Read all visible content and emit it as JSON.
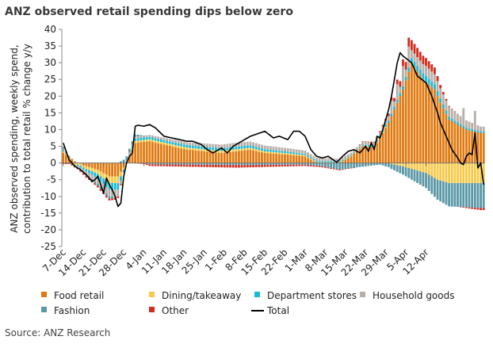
{
  "chart_data": {
    "type": "bar",
    "stacked": true,
    "title": "ANZ observed retail spending dips below zero",
    "ylabel": "ANZ observed spending, weekly spend, contribution to total retail % change y/y",
    "ylabel_lines": [
      "ANZ observed spending, weekly spend,",
      "contribution to total retail % change y/y"
    ],
    "ylim": [
      -25,
      40
    ],
    "yticks": [
      40,
      35,
      30,
      25,
      20,
      15,
      10,
      5,
      0,
      -5,
      -10,
      -15,
      -20,
      -25
    ],
    "source": "Source: ANZ Research",
    "xticks": [
      "7-Dec",
      "14-Dec",
      "21-Dec",
      "28-Dec",
      "4-Jan",
      "11-Jan",
      "18-Jan",
      "25-Jan",
      "1-Feb",
      "8-Feb",
      "15-Feb",
      "22-Feb",
      "1-Mar",
      "8-Mar",
      "15-Mar",
      "22-Mar",
      "29-Mar",
      "5-Apr",
      "12-Apr"
    ],
    "colors": {
      "food": "#E07A10",
      "dining": "#F7C948",
      "dept": "#1AB9D6",
      "household": "#B8AFA8",
      "fashion": "#5B98A6",
      "other": "#D22B1E",
      "total": "#000000"
    },
    "legend": [
      {
        "key": "food",
        "label": "Food retail",
        "kind": "bar"
      },
      {
        "key": "dining",
        "label": "Dining/takeaway",
        "kind": "bar"
      },
      {
        "key": "dept",
        "label": "Department stores",
        "kind": "bar"
      },
      {
        "key": "household",
        "label": "Household goods",
        "kind": "bar"
      },
      {
        "key": "fashion",
        "label": "Fashion",
        "kind": "bar"
      },
      {
        "key": "other",
        "label": "Other",
        "kind": "bar"
      },
      {
        "key": "total",
        "label": "Total",
        "kind": "line"
      }
    ],
    "knots": {
      "food": [
        [
          0,
          3
        ],
        [
          4,
          0.5
        ],
        [
          8,
          -1
        ],
        [
          12,
          -2
        ],
        [
          16,
          -4
        ],
        [
          19,
          -4
        ],
        [
          22,
          0
        ],
        [
          25,
          6
        ],
        [
          30,
          6.5
        ],
        [
          35,
          5.5
        ],
        [
          43,
          4
        ],
        [
          55,
          3
        ],
        [
          60,
          3.5
        ],
        [
          65,
          4
        ],
        [
          70,
          3
        ],
        [
          78,
          2.5
        ],
        [
          84,
          2
        ],
        [
          88,
          0
        ],
        [
          96,
          0
        ],
        [
          100,
          2
        ],
        [
          104,
          5
        ],
        [
          108,
          4.5
        ],
        [
          113,
          12
        ],
        [
          118,
          22
        ],
        [
          121,
          30
        ],
        [
          125,
          25
        ],
        [
          129,
          22
        ],
        [
          131,
          18
        ],
        [
          134,
          13
        ],
        [
          138,
          11
        ],
        [
          140,
          10
        ],
        [
          145,
          9
        ]
      ],
      "dining": [
        [
          0,
          0.5
        ],
        [
          4,
          -0.5
        ],
        [
          10,
          -1
        ],
        [
          16,
          -2
        ],
        [
          19,
          -2
        ],
        [
          22,
          0
        ],
        [
          25,
          0.6
        ],
        [
          60,
          0.6
        ],
        [
          84,
          0.3
        ],
        [
          100,
          0.1
        ],
        [
          112,
          0.3
        ],
        [
          114,
          -0.3
        ],
        [
          118,
          -1
        ],
        [
          122,
          -2
        ],
        [
          126,
          -3
        ],
        [
          130,
          -5
        ],
        [
          134,
          -6
        ],
        [
          145,
          -6
        ]
      ],
      "dept": [
        [
          0,
          0.3
        ],
        [
          8,
          -0.7
        ],
        [
          16,
          -2
        ],
        [
          19,
          -2
        ],
        [
          22,
          0
        ],
        [
          25,
          0.7
        ],
        [
          60,
          0.8
        ],
        [
          84,
          0.4
        ],
        [
          100,
          0.2
        ],
        [
          110,
          0.5
        ],
        [
          118,
          1
        ],
        [
          122,
          1.5
        ],
        [
          126,
          1.8
        ],
        [
          130,
          1.5
        ],
        [
          135,
          0.7
        ],
        [
          145,
          0.4
        ]
      ],
      "household": [
        [
          0,
          0.5
        ],
        [
          8,
          -1
        ],
        [
          16,
          -2
        ],
        [
          19,
          -2
        ],
        [
          22,
          1
        ],
        [
          25,
          0.5
        ],
        [
          60,
          1.2
        ],
        [
          84,
          1
        ],
        [
          100,
          0.8
        ],
        [
          110,
          1
        ],
        [
          118,
          2
        ],
        [
          122,
          2.5
        ],
        [
          126,
          3
        ],
        [
          130,
          3
        ],
        [
          134,
          3
        ],
        [
          145,
          1.5
        ]
      ],
      "fashion": [
        [
          0,
          0.5
        ],
        [
          8,
          -0.5
        ],
        [
          15,
          -0.8
        ],
        [
          18,
          -0.5
        ],
        [
          21,
          1
        ],
        [
          24,
          1
        ],
        [
          30,
          -0.4
        ],
        [
          60,
          -0.6
        ],
        [
          84,
          -0.5
        ],
        [
          90,
          -1
        ],
        [
          96,
          -2
        ],
        [
          100,
          -1.5
        ],
        [
          110,
          -0.5
        ],
        [
          114,
          -1.5
        ],
        [
          118,
          -2.5
        ],
        [
          122,
          -3.5
        ],
        [
          126,
          -4.5
        ],
        [
          130,
          -6
        ],
        [
          134,
          -7
        ],
        [
          145,
          -7.5
        ]
      ],
      "other": [
        [
          0,
          -0.3
        ],
        [
          14,
          -0.5
        ],
        [
          19,
          -0.5
        ],
        [
          22,
          0
        ],
        [
          24,
          0
        ],
        [
          30,
          -0.5
        ],
        [
          60,
          -0.8
        ],
        [
          84,
          -0.4
        ],
        [
          96,
          -0.2
        ],
        [
          110,
          0.3
        ],
        [
          115,
          1
        ],
        [
          118,
          2
        ],
        [
          121,
          3
        ],
        [
          125,
          2.5
        ],
        [
          129,
          2
        ],
        [
          131,
          1
        ],
        [
          134,
          0.2
        ],
        [
          145,
          -0.6
        ]
      ]
    },
    "total_knots": [
      [
        0,
        6
      ],
      [
        2,
        1
      ],
      [
        4,
        -1
      ],
      [
        6,
        -2
      ],
      [
        8,
        -3.5
      ],
      [
        10,
        -5.5
      ],
      [
        11,
        -5
      ],
      [
        12,
        -4
      ],
      [
        13,
        -6.5
      ],
      [
        14,
        -9
      ],
      [
        15,
        -4.5
      ],
      [
        16,
        -6.5
      ],
      [
        17,
        -8
      ],
      [
        18,
        -10
      ],
      [
        19,
        -13
      ],
      [
        20,
        -12
      ],
      [
        21,
        -4
      ],
      [
        22,
        0
      ],
      [
        23,
        2
      ],
      [
        24,
        3
      ],
      [
        25,
        11
      ],
      [
        26,
        11.3
      ],
      [
        28,
        11
      ],
      [
        30,
        11.5
      ],
      [
        32,
        10.5
      ],
      [
        35,
        8
      ],
      [
        43,
        6.5
      ],
      [
        45,
        6.5
      ],
      [
        48,
        5.5
      ],
      [
        50,
        4
      ],
      [
        52,
        3
      ],
      [
        55,
        4.5
      ],
      [
        57,
        3
      ],
      [
        59,
        5
      ],
      [
        62,
        6.5
      ],
      [
        65,
        8
      ],
      [
        70,
        9.5
      ],
      [
        73,
        7.5
      ],
      [
        75,
        8
      ],
      [
        78,
        7
      ],
      [
        80,
        9.5
      ],
      [
        82,
        9.5
      ],
      [
        84,
        8
      ],
      [
        86,
        4
      ],
      [
        88,
        2
      ],
      [
        90,
        1.5
      ],
      [
        92,
        2
      ],
      [
        95,
        0.2
      ],
      [
        97,
        2
      ],
      [
        99,
        3.5
      ],
      [
        101,
        4
      ],
      [
        103,
        3
      ],
      [
        105,
        5
      ],
      [
        106,
        3.5
      ],
      [
        107,
        6
      ],
      [
        108,
        4
      ],
      [
        109,
        8
      ],
      [
        110,
        7.5
      ],
      [
        111,
        10
      ],
      [
        112,
        13
      ],
      [
        113,
        16
      ],
      [
        114,
        20
      ],
      [
        115,
        25
      ],
      [
        116,
        30
      ],
      [
        117,
        33
      ],
      [
        118,
        32
      ],
      [
        121,
        30
      ],
      [
        123,
        26
      ],
      [
        126,
        24
      ],
      [
        128,
        20
      ],
      [
        130,
        15
      ],
      [
        131,
        12
      ],
      [
        133,
        8
      ],
      [
        135,
        4
      ],
      [
        137,
        1.5
      ],
      [
        138,
        0
      ],
      [
        139,
        -0.5
      ],
      [
        140,
        2
      ],
      [
        141,
        3
      ],
      [
        142,
        2.5
      ],
      [
        143,
        9
      ],
      [
        144,
        -1.5
      ],
      [
        145,
        0
      ],
      [
        146,
        -6.5
      ]
    ],
    "spikes": [
      [
        114,
        2.5
      ],
      [
        116,
        3
      ],
      [
        118,
        4
      ],
      [
        120,
        4
      ],
      [
        139,
        3
      ],
      [
        143,
        4
      ]
    ]
  }
}
